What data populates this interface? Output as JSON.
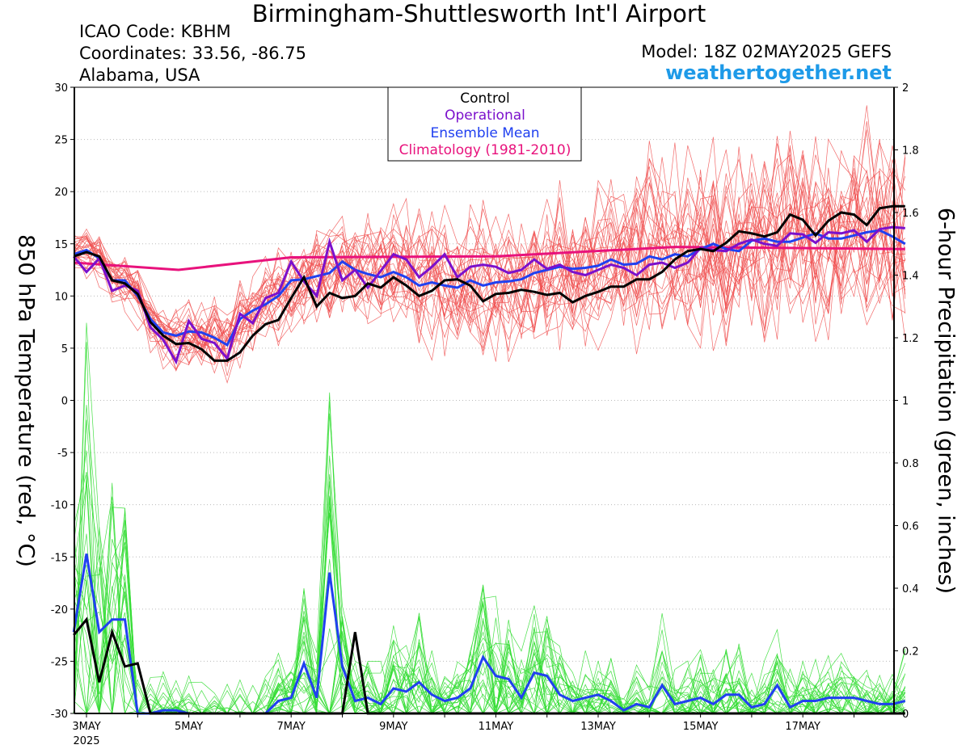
{
  "header": {
    "title": "Birmingham-Shuttlesworth Int'l Airport",
    "icao": "ICAO Code: KBHM",
    "coordinates": "Coordinates: 33.56, -86.75",
    "region": "Alabama, USA",
    "model": "Model: 18Z 02MAY2025 GEFS",
    "site": "weathertogether.net"
  },
  "colors": {
    "control": "#000000",
    "operational": "#7b10cc",
    "ensemble_mean": "#2040f0",
    "climatology": "#e8127c",
    "members_temp": "#f05050",
    "members_precip": "#33dd33",
    "site": "#1e9ae8"
  },
  "chart_data": {
    "type": "line",
    "title": "Birmingham-Shuttlesworth Int'l Airport",
    "ylabel": "850 hPa Temperature (red, °C)",
    "ylabel_right": "6-hour Precipitation (green, inches)",
    "ylim": [
      -30,
      30
    ],
    "ylim_right": [
      0,
      2
    ],
    "yticks": [
      30,
      25,
      20,
      15,
      10,
      5,
      0,
      -5,
      -10,
      -15,
      -20,
      -25,
      -30
    ],
    "yticks_right": [
      "2",
      "1.8",
      "1.6",
      "1.4",
      "1.2",
      "1",
      "0.8",
      "0.6",
      "0.4",
      "0.2",
      "0"
    ],
    "x_unit": "days after 00Z 3MAY2025",
    "xlim": [
      0,
      16
    ],
    "xticks": [
      {
        "x": 0,
        "label": "3MAY",
        "sub": "2025"
      },
      {
        "x": 2,
        "label": "5MAY"
      },
      {
        "x": 4,
        "label": "7MAY"
      },
      {
        "x": 6,
        "label": "9MAY"
      },
      {
        "x": 8,
        "label": "11MAY"
      },
      {
        "x": 10,
        "label": "13MAY"
      },
      {
        "x": 12,
        "label": "15MAY"
      },
      {
        "x": 14,
        "label": "17MAY"
      }
    ],
    "grid": true,
    "legend_position": "top-center",
    "legend": [
      "Control",
      "Operational",
      "Ensemble Mean",
      "Climatology (1981-2010)"
    ],
    "climatology": {
      "x": [
        -0.25,
        1.8,
        4.0,
        8.0,
        11.5,
        16.0
      ],
      "y": [
        13.2,
        12.5,
        13.7,
        13.8,
        14.7,
        14.5
      ]
    },
    "control_temp": {
      "x": [
        -0.25,
        0,
        0.25,
        0.5,
        0.75,
        1,
        1.25,
        1.5,
        1.75,
        2,
        2.25,
        2.5,
        2.75,
        3,
        3.25,
        3.5,
        3.75,
        4,
        4.25,
        4.5,
        4.75,
        5,
        5.25,
        5.5,
        5.75,
        6,
        6.25,
        6.5,
        6.75,
        7,
        7.25,
        7.5,
        7.75,
        8,
        8.25,
        8.5,
        8.75,
        9,
        9.25,
        9.5,
        9.75,
        10,
        10.25,
        10.5,
        10.75,
        11,
        11.25,
        11.5,
        11.75,
        12,
        12.25,
        12.5,
        12.75,
        13,
        13.25,
        13.5,
        13.75,
        14,
        14.25,
        14.5,
        14.75,
        15,
        15.25,
        15.5,
        15.75,
        16
      ],
      "y": [
        13.8,
        14.2,
        13.8,
        11.5,
        11.2,
        10.2,
        7.5,
        6.2,
        5.4,
        5.5,
        4.9,
        3.8,
        3.8,
        4.6,
        6.2,
        7.3,
        7.7,
        9.8,
        11.8,
        9.0,
        10.3,
        9.8,
        10.0,
        11.2,
        10.8,
        11.8,
        11.0,
        10.0,
        10.5,
        11.5,
        11.6,
        11.0,
        9.5,
        10.2,
        10.3,
        10.6,
        10.4,
        10.1,
        10.3,
        9.4,
        10.0,
        10.4,
        10.9,
        10.9,
        11.6,
        11.6,
        12.3,
        13.5,
        14.3,
        14.5,
        14.3,
        15.1,
        16.2,
        16.0,
        15.7,
        16.1,
        17.8,
        17.3,
        15.8,
        17.2,
        18.0,
        17.8,
        16.8,
        18.4,
        18.6,
        18.6
      ]
    },
    "operational_temp": {
      "x": [
        -0.25,
        0,
        0.25,
        0.5,
        0.75,
        1,
        1.25,
        1.5,
        1.75,
        2,
        2.25,
        2.5,
        2.75,
        3,
        3.25,
        3.5,
        3.75,
        4,
        4.25,
        4.5,
        4.75,
        5,
        5.25,
        5.5,
        5.75,
        6,
        6.25,
        6.5,
        6.75,
        7,
        7.25,
        7.5,
        7.75,
        8,
        8.25,
        8.5,
        8.75,
        9,
        9.25,
        9.5,
        9.75,
        10,
        10.25,
        10.5,
        10.75,
        11,
        11.25,
        11.5,
        11.75,
        12,
        12.25,
        12.5,
        12.75,
        13,
        13.25,
        13.5,
        13.75,
        14,
        14.25,
        14.5,
        14.75,
        15,
        15.25,
        15.5,
        15.75,
        16
      ],
      "y": [
        13.8,
        12.3,
        13.6,
        10.5,
        11.0,
        10.5,
        7.0,
        5.8,
        3.7,
        7.6,
        5.9,
        5.5,
        4.0,
        8.3,
        7.4,
        9.8,
        10.3,
        13.3,
        11.4,
        10.0,
        15.2,
        11.5,
        12.5,
        10.8,
        12.4,
        14.0,
        13.5,
        11.8,
        12.8,
        14.0,
        11.8,
        12.8,
        13.0,
        12.8,
        12.2,
        12.5,
        13.5,
        12.6,
        13.0,
        12.3,
        12.0,
        12.5,
        13.0,
        12.7,
        12.0,
        13.0,
        13.2,
        12.7,
        13.2,
        14.6,
        14.4,
        14.3,
        15.0,
        15.4,
        15.0,
        14.8,
        16.0,
        15.9,
        15.1,
        16.1,
        16.0,
        16.3,
        15.2,
        16.4,
        16.6,
        16.5
      ]
    },
    "ensemble_mean_temp": {
      "x": [
        -0.25,
        0,
        0.25,
        0.5,
        0.75,
        1,
        1.25,
        1.5,
        1.75,
        2,
        2.25,
        2.5,
        2.75,
        3,
        3.25,
        3.5,
        3.75,
        4,
        4.25,
        4.5,
        4.75,
        5,
        5.25,
        5.5,
        5.75,
        6,
        6.25,
        6.5,
        6.75,
        7,
        7.25,
        7.5,
        7.75,
        8,
        8.25,
        8.5,
        8.75,
        9,
        9.25,
        9.5,
        9.75,
        10,
        10.25,
        10.5,
        10.75,
        11,
        11.25,
        11.5,
        11.75,
        12,
        12.25,
        12.5,
        12.75,
        13,
        13.25,
        13.5,
        13.75,
        14,
        14.25,
        14.5,
        14.75,
        15,
        15.25,
        15.5,
        15.75,
        16
      ],
      "y": [
        14.0,
        14.4,
        13.6,
        11.5,
        11.5,
        10.0,
        7.8,
        6.5,
        6.2,
        6.6,
        6.5,
        6.0,
        5.3,
        7.8,
        8.6,
        9.2,
        10.0,
        11.5,
        11.6,
        11.9,
        12.2,
        13.3,
        12.5,
        12.1,
        11.8,
        12.3,
        11.8,
        11.0,
        11.3,
        11.0,
        10.8,
        11.5,
        11.0,
        11.3,
        11.4,
        11.6,
        12.2,
        12.5,
        12.8,
        12.6,
        12.7,
        12.9,
        13.5,
        13.0,
        13.1,
        13.8,
        13.5,
        14.0,
        13.8,
        14.5,
        15.0,
        14.5,
        14.3,
        15.3,
        15.5,
        15.2,
        15.2,
        15.6,
        16.0,
        15.5,
        15.5,
        15.8,
        16.1,
        16.3,
        15.7,
        15.0
      ]
    },
    "control_precip": {
      "x": [
        -0.25,
        0,
        0.25,
        0.5,
        0.75,
        1,
        1.25,
        1.5,
        1.75,
        2,
        2.25,
        2.5,
        2.75,
        3,
        3.25,
        3.5,
        3.75,
        4,
        4.25,
        4.5,
        4.75,
        5,
        5.25,
        5.5,
        5.75,
        6,
        6.25,
        6.5,
        6.75,
        7,
        7.25,
        7.5,
        7.75,
        8,
        8.25,
        8.5,
        8.75,
        9,
        9.25,
        9.5,
        9.75,
        10,
        10.25,
        10.5,
        10.75,
        11,
        11.25,
        11.5,
        11.75,
        12,
        12.25,
        12.5,
        12.75,
        13,
        13.25,
        13.5,
        13.75,
        14,
        14.25,
        14.5,
        14.75,
        15,
        15.25,
        15.5,
        15.75,
        16
      ],
      "y": [
        0.25,
        0.3,
        0.1,
        0.26,
        0.15,
        0.16,
        0.0,
        0.0,
        0.0,
        0.0,
        0.0,
        0.0,
        0.0,
        0.0,
        0.0,
        0.0,
        0.0,
        0.0,
        0.0,
        0.0,
        0.0,
        0.0,
        0.26,
        0.0,
        0.0,
        0.0,
        0.0,
        0.0,
        0.0,
        0.0,
        0.0,
        0.0,
        0.0,
        0.0,
        0.0,
        0.0,
        0.0,
        0.0,
        0.0,
        0.0,
        0.0,
        0.0,
        0.0,
        0.0,
        0.0,
        0.0,
        0.0,
        0.0,
        0.0,
        0.0,
        0.0,
        0.0,
        0.0,
        0.0,
        0.0,
        0.0,
        0.0,
        0.0,
        0.0,
        0.0,
        0.0,
        0.0,
        0.0,
        0.0,
        0.0,
        0.0
      ]
    },
    "ensemble_mean_precip": {
      "x": [
        -0.25,
        0,
        0.25,
        0.5,
        0.75,
        1,
        1.25,
        1.5,
        1.75,
        2,
        2.25,
        2.5,
        2.75,
        3,
        3.25,
        3.5,
        3.75,
        4,
        4.25,
        4.5,
        4.75,
        5,
        5.25,
        5.5,
        5.75,
        6,
        6.25,
        6.5,
        6.75,
        7,
        7.25,
        7.5,
        7.75,
        8,
        8.25,
        8.5,
        8.75,
        9,
        9.25,
        9.5,
        9.75,
        10,
        10.25,
        10.5,
        10.75,
        11,
        11.25,
        11.5,
        11.75,
        12,
        12.25,
        12.5,
        12.75,
        13,
        13.25,
        13.5,
        13.75,
        14,
        14.25,
        14.5,
        14.75,
        15,
        15.25,
        15.5,
        15.75,
        16
      ],
      "y": [
        0.26,
        0.51,
        0.26,
        0.3,
        0.3,
        0.0,
        0.0,
        0.01,
        0.01,
        0.0,
        0.0,
        0.0,
        0.0,
        0.0,
        0.0,
        0.0,
        0.04,
        0.05,
        0.16,
        0.05,
        0.45,
        0.15,
        0.04,
        0.05,
        0.03,
        0.08,
        0.07,
        0.1,
        0.06,
        0.04,
        0.05,
        0.08,
        0.18,
        0.12,
        0.11,
        0.05,
        0.13,
        0.12,
        0.06,
        0.04,
        0.05,
        0.06,
        0.04,
        0.01,
        0.03,
        0.02,
        0.09,
        0.03,
        0.04,
        0.05,
        0.03,
        0.06,
        0.06,
        0.02,
        0.03,
        0.09,
        0.02,
        0.04,
        0.04,
        0.05,
        0.05,
        0.05,
        0.04,
        0.03,
        0.03,
        0.04
      ]
    }
  }
}
